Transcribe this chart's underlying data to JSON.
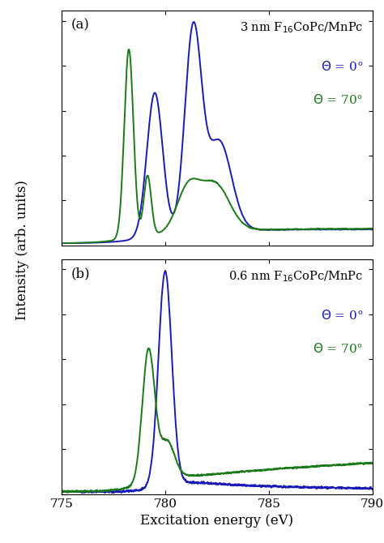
{
  "xlim": [
    775,
    790
  ],
  "xlabel": "Excitation energy (eV)",
  "ylabel": "Intensity (arb. units)",
  "label_a": "(a)",
  "label_b": "(b)",
  "color_blue": "#1a1ab8",
  "color_green": "#1a7a1a",
  "line_width": 1.4,
  "background_color": "#ffffff",
  "xticks": [
    775,
    780,
    785,
    790
  ]
}
